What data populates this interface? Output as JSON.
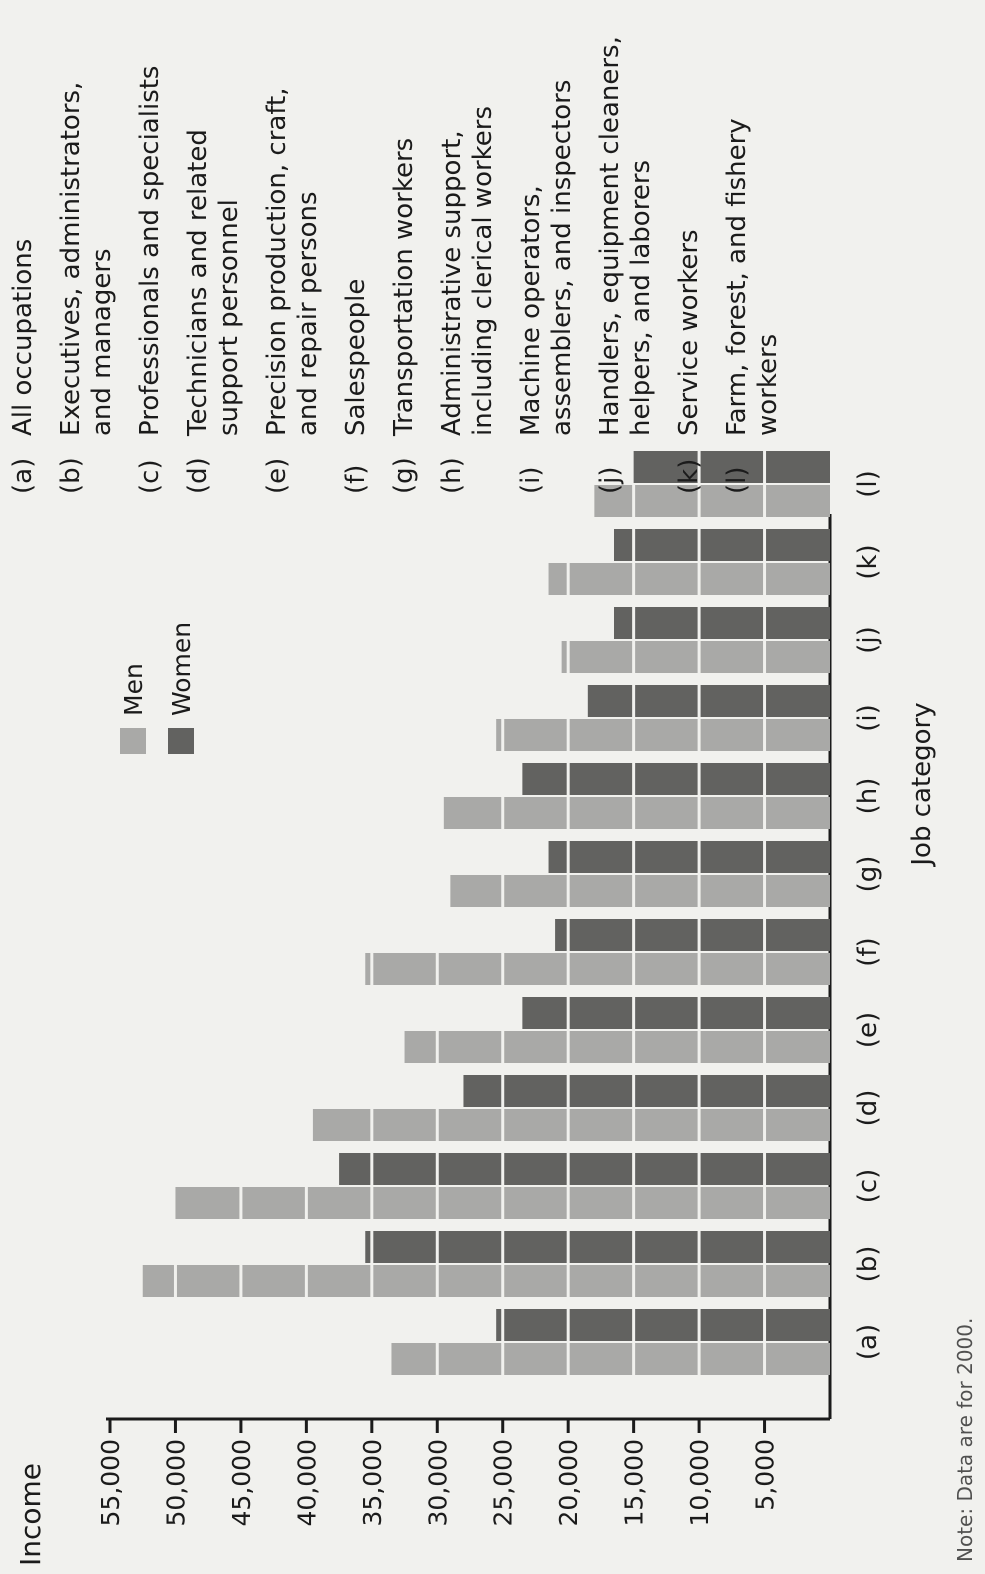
{
  "chart_data": {
    "type": "bar",
    "ylabel": "Income",
    "xlabel": "Job category",
    "ylim": [
      0,
      55000
    ],
    "y_ticks": [
      "55,000",
      "50,000",
      "45,000",
      "40,000",
      "35,000",
      "30,000",
      "25,000",
      "20,000",
      "15,000",
      "10,000",
      "5,000"
    ],
    "y_tick_values": [
      55000,
      50000,
      45000,
      40000,
      35000,
      30000,
      25000,
      20000,
      15000,
      10000,
      5000
    ],
    "categories": [
      "(a)",
      "(b)",
      "(c)",
      "(d)",
      "(e)",
      "(f)",
      "(g)",
      "(h)",
      "(i)",
      "(j)",
      "(k)",
      "(l)"
    ],
    "series": [
      {
        "name": "Men",
        "values": [
          33500,
          52500,
          50000,
          39500,
          32500,
          35500,
          29000,
          29500,
          25500,
          20500,
          21500,
          18000
        ]
      },
      {
        "name": "Women",
        "values": [
          25500,
          35500,
          37500,
          28000,
          23500,
          21000,
          21500,
          23500,
          18500,
          16500,
          16500,
          15000
        ]
      }
    ],
    "legend": {
      "position": "top-right",
      "entries": [
        "Men",
        "Women"
      ]
    },
    "colors": {
      "men": "#a9a9a7",
      "women": "#626260"
    },
    "grid": false
  },
  "category_key": [
    {
      "code": "(a)",
      "label": "All occupations"
    },
    {
      "code": "(b)",
      "label": "Executives, administrators, and managers"
    },
    {
      "code": "(c)",
      "label": "Professionals and specialists"
    },
    {
      "code": "(d)",
      "label": "Technicians and related support personnel"
    },
    {
      "code": "(e)",
      "label": "Precision production, craft, and repair persons"
    },
    {
      "code": "(f)",
      "label": "Salespeople"
    },
    {
      "code": "(g)",
      "label": "Transportation workers"
    },
    {
      "code": "(h)",
      "label": "Administrative support, including clerical workers"
    },
    {
      "code": "(i)",
      "label": "Machine operators, assemblers, and inspectors"
    },
    {
      "code": "(j)",
      "label": "Handlers, equipment cleaners, helpers, and laborers"
    },
    {
      "code": "(k)",
      "label": "Service workers"
    },
    {
      "code": "(l)",
      "label": "Farm, forest, and fishery workers"
    }
  ],
  "note": "Note: Data are for 2000."
}
